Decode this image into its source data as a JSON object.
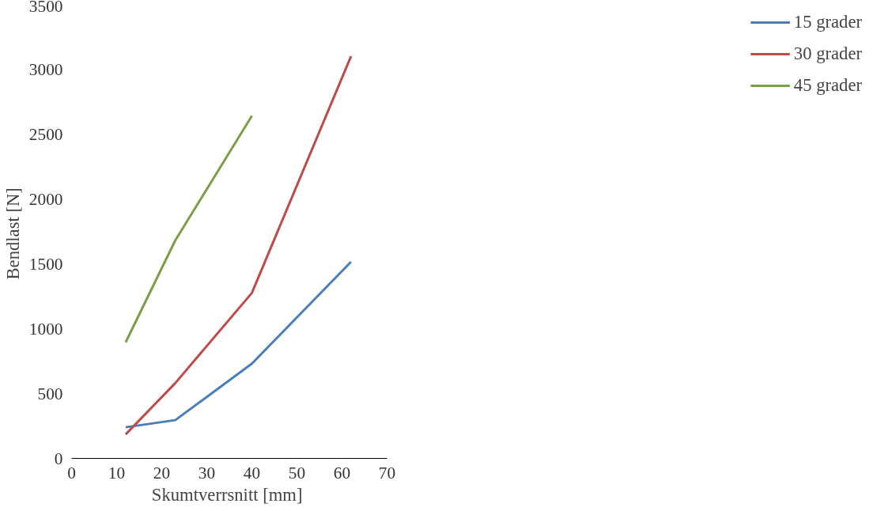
{
  "chart_data": {
    "type": "line",
    "xlabel": "Skumtverrsnitt  [mm]",
    "ylabel": "Bendlast  [N]",
    "x": [
      12,
      23,
      40,
      62
    ],
    "series": [
      {
        "name": "15 grader",
        "color": "#4a7ebb",
        "values": [
          240,
          295,
          730,
          1515
        ]
      },
      {
        "name": "30 grader",
        "color": "#be4b48",
        "values": [
          185,
          580,
          1275,
          3100
        ]
      },
      {
        "name": "45 grader",
        "color": "#7b9f45",
        "values": [
          895,
          1680,
          2640,
          null
        ]
      }
    ],
    "xlim": [
      0,
      70
    ],
    "xticks": [
      0,
      10,
      20,
      30,
      40,
      50,
      60,
      70
    ],
    "ylim": [
      0,
      3500
    ],
    "yticks": [
      0,
      500,
      1000,
      1500,
      2000,
      2500,
      3000,
      3500
    ],
    "grid": false,
    "legend": "right",
    "marker": "none",
    "line_style": "solid"
  }
}
